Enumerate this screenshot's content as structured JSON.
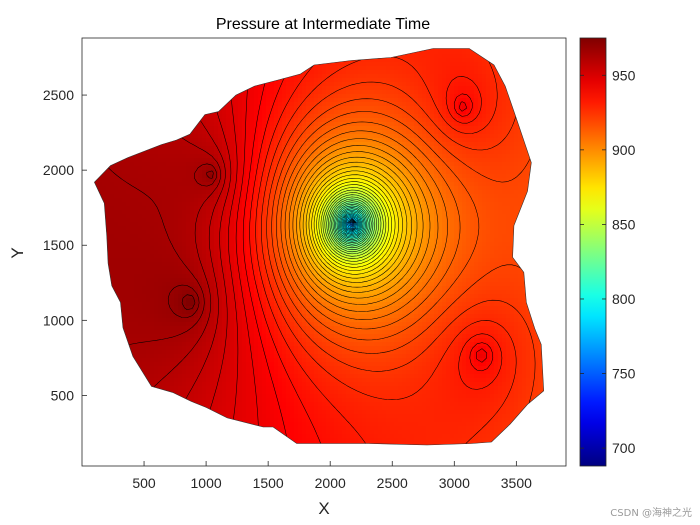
{
  "chart_data": {
    "type": "contour",
    "title": "Pressure at Intermediate Time",
    "xlabel": "X",
    "ylabel": "Y",
    "xlim": [
      0,
      3900
    ],
    "ylim": [
      30,
      2880
    ],
    "xticks": [
      500,
      1000,
      1500,
      2000,
      2500,
      3000,
      3500
    ],
    "yticks": [
      500,
      1000,
      1500,
      2000,
      2500
    ],
    "colormap": "jet",
    "colorbar": {
      "range": [
        688,
        975
      ],
      "ticks": [
        700,
        750,
        800,
        850,
        900,
        950
      ]
    },
    "wells": [
      {
        "x": 2170,
        "y": 1640,
        "pressure": 688,
        "kind": "producer"
      },
      {
        "x": 1040,
        "y": 1970,
        "pressure": 960,
        "kind": "injector"
      },
      {
        "x": 870,
        "y": 1120,
        "pressure": 960,
        "kind": "injector"
      },
      {
        "x": 3070,
        "y": 2420,
        "pressure": 965,
        "kind": "injector"
      },
      {
        "x": 3220,
        "y": 770,
        "pressure": 965,
        "kind": "injector"
      }
    ],
    "domain_boundary": [
      [
        100,
        1920
      ],
      [
        230,
        2030
      ],
      [
        360,
        2080
      ],
      [
        640,
        2170
      ],
      [
        760,
        2200
      ],
      [
        870,
        2240
      ],
      [
        990,
        2370
      ],
      [
        1100,
        2390
      ],
      [
        1240,
        2500
      ],
      [
        1390,
        2560
      ],
      [
        1580,
        2600
      ],
      [
        1760,
        2640
      ],
      [
        1870,
        2700
      ],
      [
        2170,
        2730
      ],
      [
        2490,
        2750
      ],
      [
        2830,
        2810
      ],
      [
        3120,
        2810
      ],
      [
        3320,
        2700
      ],
      [
        3410,
        2560
      ],
      [
        3510,
        2320
      ],
      [
        3620,
        2050
      ],
      [
        3590,
        1860
      ],
      [
        3480,
        1630
      ],
      [
        3470,
        1420
      ],
      [
        3560,
        1320
      ],
      [
        3580,
        1120
      ],
      [
        3650,
        940
      ],
      [
        3700,
        840
      ],
      [
        3720,
        530
      ],
      [
        3590,
        440
      ],
      [
        3450,
        310
      ],
      [
        3300,
        190
      ],
      [
        3140,
        180
      ],
      [
        2780,
        170
      ],
      [
        2310,
        180
      ],
      [
        1860,
        180
      ],
      [
        1730,
        180
      ],
      [
        1540,
        290
      ],
      [
        1460,
        290
      ],
      [
        1170,
        350
      ],
      [
        1000,
        420
      ],
      [
        880,
        460
      ],
      [
        730,
        520
      ],
      [
        560,
        560
      ],
      [
        410,
        760
      ],
      [
        330,
        950
      ],
      [
        310,
        1120
      ],
      [
        240,
        1230
      ],
      [
        210,
        1380
      ],
      [
        200,
        1560
      ],
      [
        180,
        1780
      ],
      [
        100,
        1920
      ]
    ]
  },
  "watermark": "CSDN @海神之光"
}
